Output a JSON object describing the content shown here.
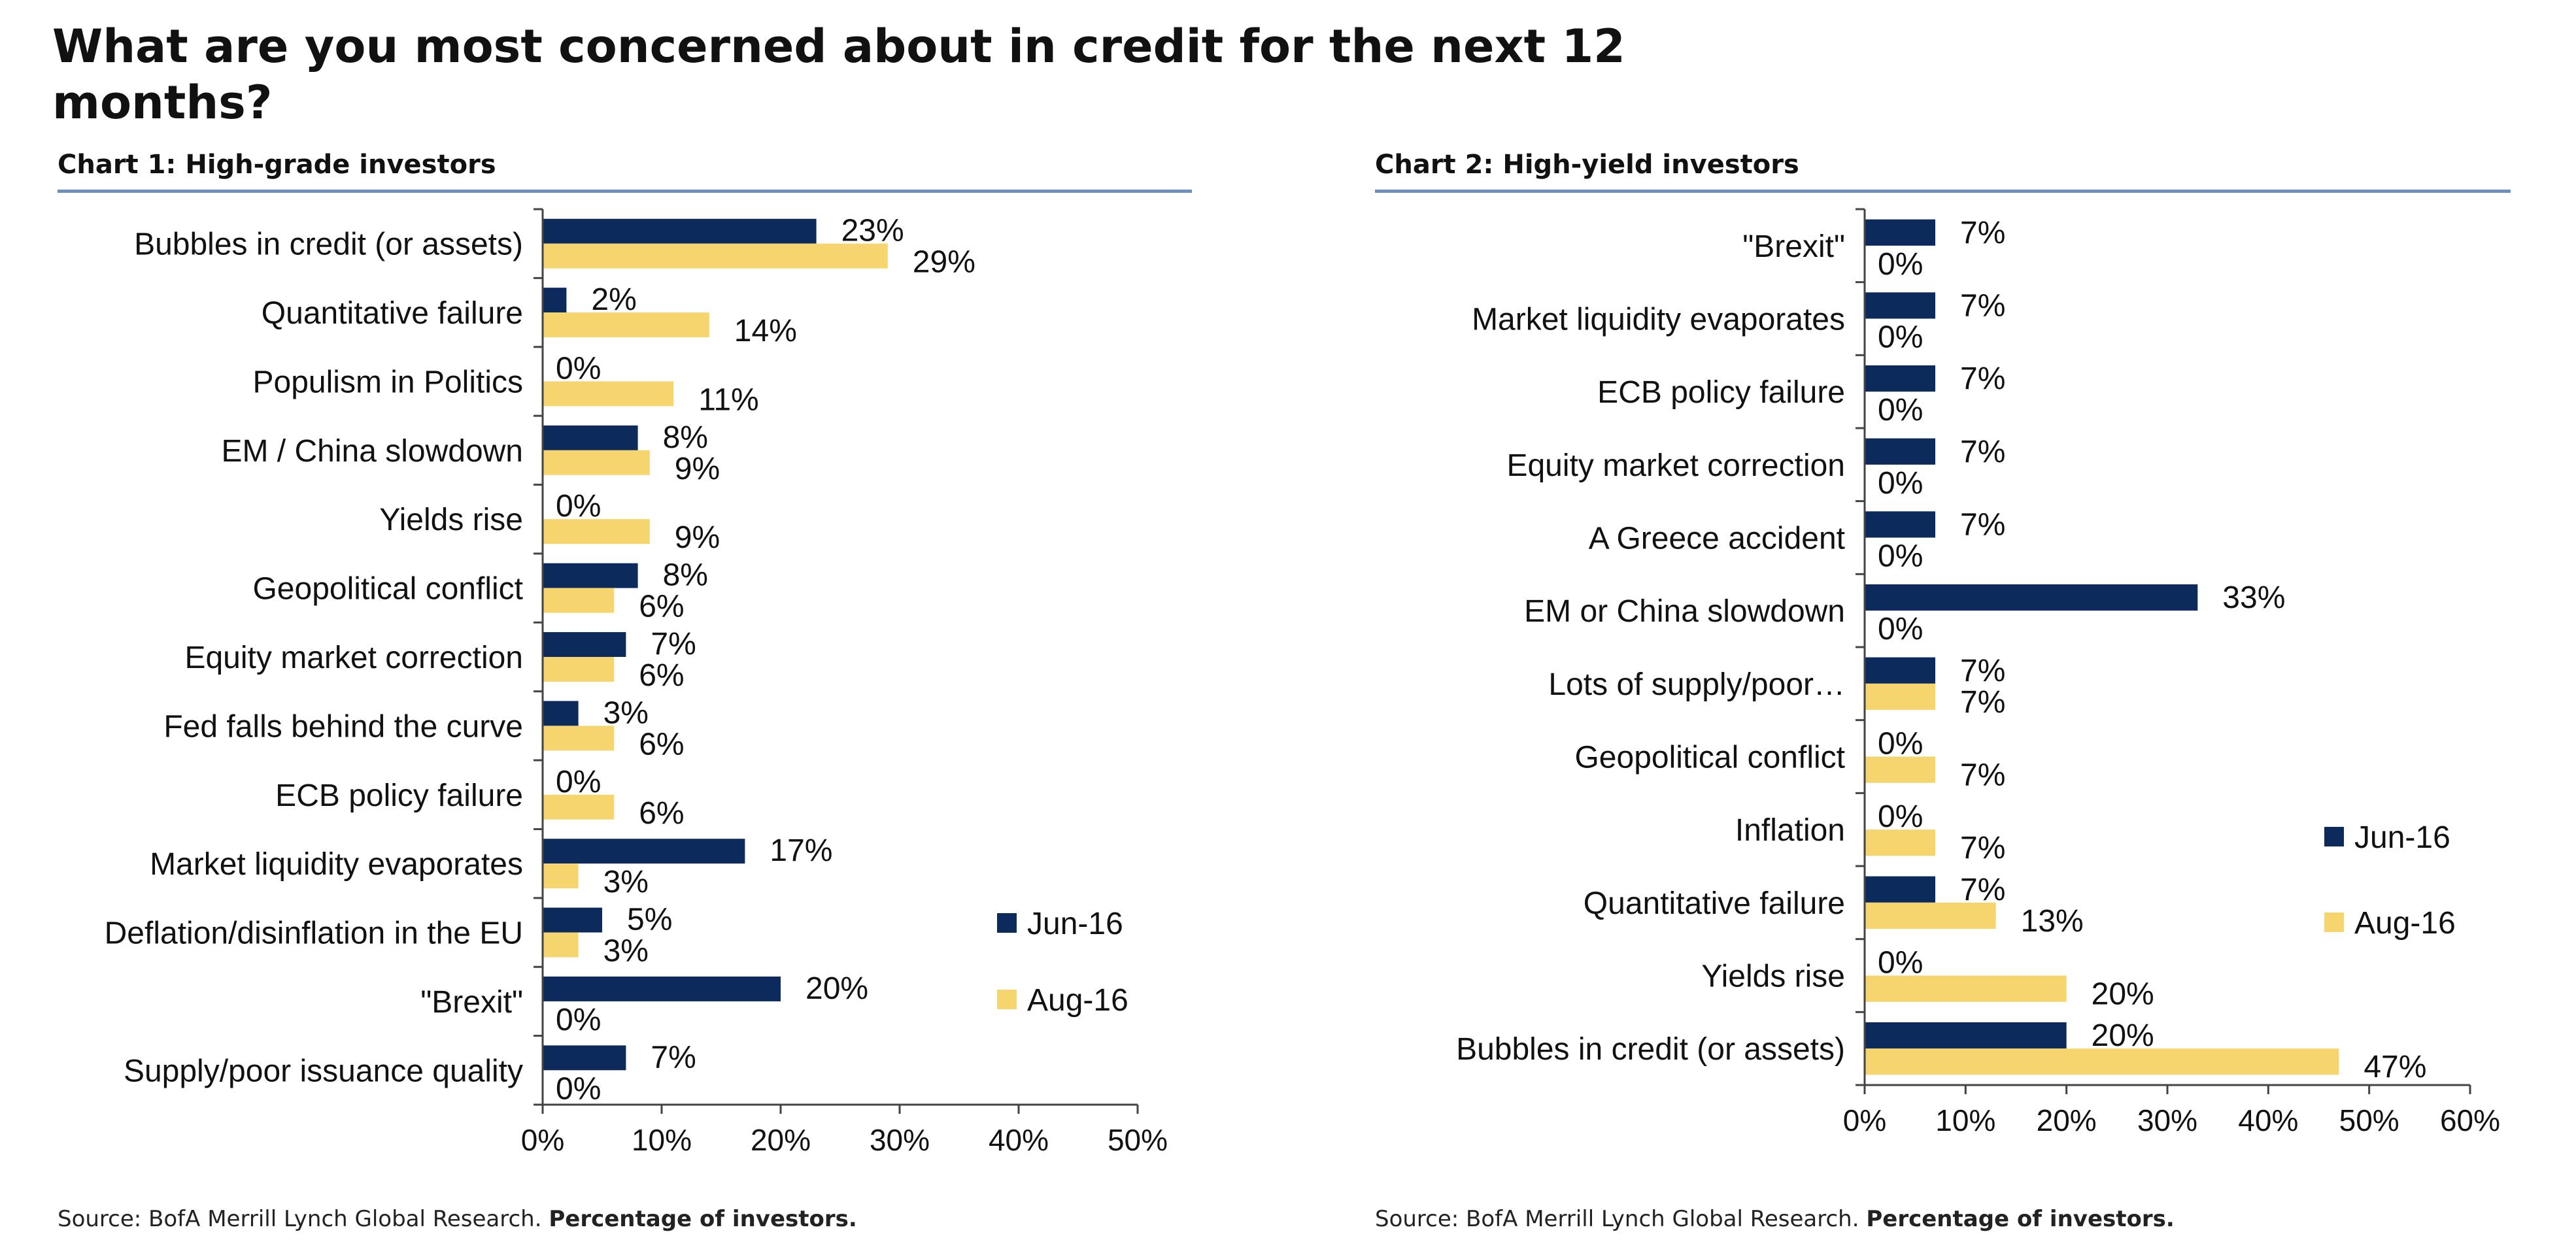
{
  "title": "What are you most concerned about in credit for the next 12 months?",
  "source_prefix": "Source: BofA Merrill Lynch Global Research.",
  "source_emphasis": "Percentage of investors.",
  "colors": {
    "jun": "#0d2a5c",
    "aug": "#f6d56f",
    "axis": "#444444",
    "rule": "#6e8fbd"
  },
  "chart_data": [
    {
      "type": "bar",
      "orientation": "horizontal",
      "title": "Chart 1: High-grade investors",
      "categories": [
        "Bubbles in credit (or assets)",
        "Quantitative failure",
        "Populism in Politics",
        "EM / China slowdown",
        "Yields rise",
        "Geopolitical conflict",
        "Equity market correction",
        "Fed falls behind the curve",
        "ECB policy failure",
        "Market liquidity evaporates",
        "Deflation/disinflation in the EU",
        "\"Brexit\"",
        "Supply/poor issuance quality"
      ],
      "series": [
        {
          "name": "Jun-16",
          "values": [
            23,
            2,
            0,
            8,
            0,
            8,
            7,
            3,
            0,
            17,
            5,
            20,
            7
          ]
        },
        {
          "name": "Aug-16",
          "values": [
            29,
            14,
            11,
            9,
            9,
            6,
            6,
            6,
            6,
            3,
            3,
            0,
            0
          ]
        }
      ],
      "xlim": [
        0,
        50
      ],
      "ticks": [
        0,
        10,
        20,
        30,
        40,
        50
      ],
      "tick_labels": [
        "0%",
        "10%",
        "20%",
        "30%",
        "40%",
        "50%"
      ],
      "unit": "%",
      "legend_position": "bottom-right"
    },
    {
      "type": "bar",
      "orientation": "horizontal",
      "title": "Chart 2: High-yield investors",
      "categories": [
        "\"Brexit\"",
        "Market liquidity evaporates",
        "ECB policy failure",
        "Equity market correction",
        "A Greece accident",
        "EM or China slowdown",
        "Lots of supply/poor…",
        "Geopolitical conflict",
        "Inflation",
        "Quantitative failure",
        "Yields rise",
        "Bubbles in credit (or assets)"
      ],
      "series": [
        {
          "name": "Jun-16",
          "values": [
            7,
            7,
            7,
            7,
            7,
            33,
            7,
            0,
            0,
            7,
            0,
            20
          ]
        },
        {
          "name": "Aug-16",
          "values": [
            0,
            0,
            0,
            0,
            0,
            0,
            7,
            7,
            7,
            13,
            20,
            47
          ]
        }
      ],
      "xlim": [
        0,
        60
      ],
      "ticks": [
        0,
        10,
        20,
        30,
        40,
        50,
        60
      ],
      "tick_labels": [
        "0%",
        "10%",
        "20%",
        "30%",
        "40%",
        "50%",
        "60%"
      ],
      "unit": "%",
      "legend_position": "right"
    }
  ]
}
